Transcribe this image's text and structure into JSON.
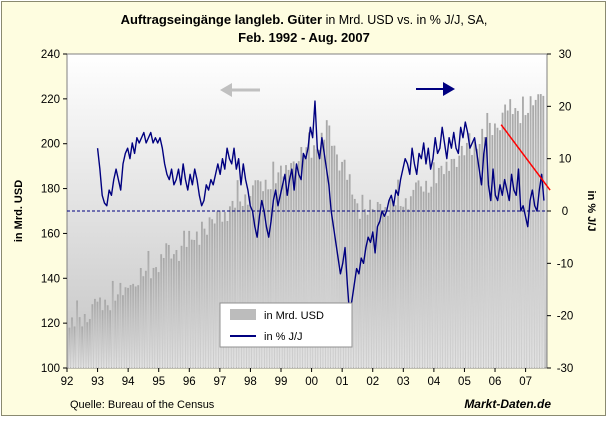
{
  "chart_data": {
    "type": "bar+line",
    "title": {
      "bold": "Auftragseingänge langleb. Güter",
      "normal": " in Mrd. USD vs. in % J/J, SA,",
      "line2": "Feb. 1992 - Aug. 2007"
    },
    "left_axis": {
      "label": "in Mrd. USD",
      "min": 100,
      "max": 240,
      "step": 20
    },
    "right_axis": {
      "label": "in % J/J",
      "min": -30,
      "max": 30,
      "step": 10
    },
    "x_ticks": [
      "92",
      "93",
      "94",
      "95",
      "96",
      "97",
      "98",
      "99",
      "00",
      "01",
      "02",
      "03",
      "04",
      "05",
      "06",
      "07"
    ],
    "left_ticks": [
      "100",
      "120",
      "140",
      "160",
      "180",
      "200",
      "220",
      "240"
    ],
    "right_ticks": [
      "-30",
      "-20",
      "-10",
      "0",
      "10",
      "20",
      "30"
    ],
    "legend": [
      "in Mrd. USD",
      "in % J/J"
    ],
    "series": [
      {
        "name": "in Mrd. USD",
        "kind": "bar",
        "axis": "left",
        "note": "yearly anchors (Feb 1992 - Aug 2007), monthly bars interpolated",
        "anchors": [
          [
            1992.08,
            118
          ],
          [
            1993.0,
            127
          ],
          [
            1994.0,
            135
          ],
          [
            1995.0,
            147
          ],
          [
            1996.0,
            156
          ],
          [
            1997.0,
            167
          ],
          [
            1998.0,
            178
          ],
          [
            1999.0,
            186
          ],
          [
            2000.0,
            198
          ],
          [
            2000.6,
            204
          ],
          [
            2001.0,
            190
          ],
          [
            2001.5,
            172
          ],
          [
            2002.0,
            170
          ],
          [
            2003.0,
            174
          ],
          [
            2004.0,
            184
          ],
          [
            2005.0,
            196
          ],
          [
            2006.0,
            208
          ],
          [
            2006.5,
            215
          ],
          [
            2007.0,
            214
          ],
          [
            2007.6,
            222
          ]
        ]
      },
      {
        "name": "in % J/J",
        "kind": "line",
        "axis": "right",
        "start": 1993.0,
        "end": 2007.6,
        "values": [
          12,
          8,
          3,
          1.5,
          1,
          4,
          3,
          6,
          8,
          6,
          4,
          9,
          11,
          12,
          10,
          13,
          11,
          14,
          13,
          14,
          15,
          13,
          14,
          15,
          13,
          14,
          13,
          14,
          12,
          9,
          7,
          6,
          8,
          5,
          6,
          8,
          5,
          9,
          6,
          4,
          7,
          5,
          8,
          6,
          3,
          1,
          2,
          5,
          4,
          6,
          5,
          7,
          9,
          7,
          10,
          8,
          12,
          10,
          9,
          12,
          8,
          10,
          5,
          9,
          6,
          4,
          1,
          0,
          -3,
          -5,
          -1,
          2,
          0,
          -3,
          -5,
          -2,
          2,
          4,
          1,
          3,
          5,
          7,
          3,
          6,
          8,
          4,
          9,
          7,
          6,
          11,
          10,
          12,
          16,
          14,
          21,
          12,
          10,
          14,
          11,
          8,
          5,
          0,
          -3,
          -6,
          -9,
          -12,
          -10,
          -7,
          -14,
          -20,
          -17,
          -14,
          -11,
          -12,
          -9,
          -10,
          -7,
          -5,
          -6,
          -4,
          -8,
          -3,
          -2,
          0,
          -1,
          0,
          2,
          3,
          1,
          4,
          3,
          6,
          8,
          10,
          9,
          7,
          12,
          9,
          7,
          11,
          10,
          13,
          9,
          12,
          8,
          10,
          14,
          11,
          12,
          16,
          13,
          10,
          14,
          12,
          15,
          12,
          11,
          16,
          14,
          17,
          15,
          12,
          13,
          14,
          11,
          8,
          5,
          11,
          14,
          5,
          2,
          8,
          3,
          2,
          5,
          3,
          6,
          4,
          2,
          7,
          4,
          3,
          8,
          0,
          1,
          -1,
          -3,
          2,
          4,
          1,
          0,
          4,
          7,
          2
        ]
      },
      {
        "name": "trend",
        "kind": "trendline",
        "axis": "right",
        "x": [
          2006.2,
          2007.8
        ],
        "y": [
          16.5,
          4
        ]
      },
      {
        "name": "zero-line",
        "kind": "reference",
        "axis": "right",
        "value": 0
      }
    ],
    "annotations": [
      "arrow pointing left (grey) - left axis",
      "arrow pointing right (navy) - right axis"
    ],
    "colors": {
      "background": "#fefde0",
      "plot_top": "#ffffff",
      "plot_bottom": "#c8c8c8",
      "bar": "#bcbcbc",
      "line": "#000080",
      "trend": "#ff0000",
      "grey_arrow": "#c0c0c0"
    }
  },
  "source": "Quelle: Bureau of the Census",
  "brand": "Markt-Daten.de"
}
